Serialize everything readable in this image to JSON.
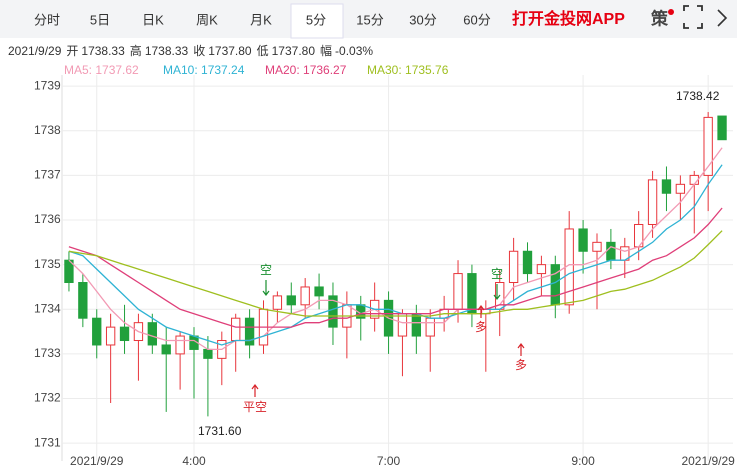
{
  "tabs": [
    "分时",
    "5日",
    "日K",
    "周K",
    "月K",
    "5分",
    "15分",
    "30分",
    "60分"
  ],
  "active_tab": 5,
  "promo": "打开金投网APP",
  "icon_label": "策",
  "ohlc": {
    "date": "2021/9/29",
    "items": [
      {
        "label": "开",
        "value": 1738.33
      },
      {
        "label": "高",
        "value": 1738.33
      },
      {
        "label": "收",
        "value": 1737.8,
        "value_label": "1737.80"
      },
      {
        "label": "低",
        "value": 1737.8,
        "value_label": "1737.80"
      },
      {
        "label": "幅",
        "value": "-0.03%"
      }
    ]
  },
  "chart_data": {
    "type": "candlestick",
    "categories": [
      null,
      null,
      "2021/9/29",
      null,
      null,
      null,
      null,
      null,
      null,
      "4:00",
      null,
      null,
      null,
      null,
      null,
      null,
      null,
      null,
      null,
      null,
      null,
      null,
      null,
      "7:00",
      null,
      null,
      null,
      null,
      null,
      null,
      null,
      null,
      null,
      null,
      null,
      null,
      null,
      "9:00",
      null,
      null,
      null,
      null,
      null,
      null,
      null,
      null,
      "2021/9/29",
      null
    ],
    "open": [
      1735.1,
      1734.6,
      1733.8,
      1733.2,
      1733.6,
      1733.3,
      1733.7,
      1733.2,
      1733.0,
      1733.4,
      1733.1,
      1732.9,
      1733.3,
      1733.8,
      1733.2,
      1734.0,
      1734.3,
      1734.1,
      1734.5,
      1734.3,
      1733.6,
      1734.1,
      1733.8,
      1734.2,
      1733.4,
      1733.9,
      1733.4,
      1733.8,
      1734.0,
      1734.8,
      1733.9,
      1734.0,
      1734.6,
      1735.3,
      1734.8,
      1735.0,
      1734.1,
      1735.8,
      1735.3,
      1735.5,
      1735.1,
      1735.4,
      1735.9,
      1736.9,
      1736.6,
      1736.8,
      1737.0,
      1738.33
    ],
    "high": [
      1735.3,
      1734.8,
      1734.0,
      1733.9,
      1734.1,
      1733.9,
      1733.9,
      1733.6,
      1733.5,
      1733.6,
      1733.4,
      1733.5,
      1733.9,
      1734.0,
      1734.2,
      1734.4,
      1734.6,
      1734.7,
      1734.8,
      1734.6,
      1734.4,
      1734.3,
      1734.6,
      1734.4,
      1734.0,
      1734.1,
      1734.0,
      1734.3,
      1735.1,
      1735.0,
      1734.2,
      1734.9,
      1735.6,
      1735.5,
      1735.2,
      1735.2,
      1736.2,
      1736.0,
      1735.7,
      1735.8,
      1735.6,
      1736.2,
      1737.1,
      1737.2,
      1737.0,
      1737.1,
      1738.42,
      1738.33
    ],
    "low": [
      1734.4,
      1733.6,
      1732.9,
      1731.9,
      1733.0,
      1732.4,
      1733.0,
      1731.7,
      1732.2,
      1732.0,
      1731.6,
      1732.3,
      1732.6,
      1732.9,
      1733.0,
      1733.7,
      1733.9,
      1733.8,
      1734.0,
      1733.2,
      1732.9,
      1733.3,
      1733.5,
      1733.0,
      1732.5,
      1733.0,
      1732.6,
      1733.5,
      1733.7,
      1733.6,
      1732.6,
      1733.4,
      1734.2,
      1734.6,
      1734.3,
      1733.8,
      1733.9,
      1734.8,
      1734.0,
      1734.9,
      1734.7,
      1735.1,
      1735.6,
      1736.2,
      1736.0,
      1735.7,
      1736.2,
      1737.8
    ],
    "close": [
      1734.6,
      1733.8,
      1733.2,
      1733.6,
      1733.3,
      1733.7,
      1733.2,
      1733.0,
      1733.4,
      1733.1,
      1732.9,
      1733.3,
      1733.8,
      1733.2,
      1734.0,
      1734.3,
      1734.1,
      1734.5,
      1734.3,
      1733.6,
      1734.1,
      1733.8,
      1734.2,
      1733.4,
      1733.9,
      1733.4,
      1733.8,
      1734.0,
      1734.8,
      1733.9,
      1734.0,
      1734.6,
      1735.3,
      1734.8,
      1735.0,
      1734.1,
      1735.8,
      1735.3,
      1735.5,
      1735.1,
      1735.4,
      1735.9,
      1736.9,
      1736.6,
      1736.8,
      1737.0,
      1738.3,
      1737.8
    ],
    "up_color": "#e8353b",
    "down_color": "#21a03c",
    "series": [
      {
        "name": "MA5: 1737.62",
        "color": "#f29ab4",
        "values": [
          1735.1,
          1734.8,
          1734.4,
          1734.0,
          1733.7,
          1733.5,
          1733.4,
          1733.3,
          1733.3,
          1733.3,
          1733.1,
          1733.1,
          1733.3,
          1733.3,
          1733.4,
          1733.7,
          1733.9,
          1734.0,
          1734.2,
          1734.2,
          1734.1,
          1733.9,
          1734.0,
          1733.8,
          1733.7,
          1733.7,
          1733.7,
          1733.7,
          1734.0,
          1734.0,
          1734.0,
          1734.1,
          1734.5,
          1734.6,
          1734.7,
          1734.8,
          1735.0,
          1735.0,
          1735.1,
          1735.4,
          1735.3,
          1735.4,
          1735.8,
          1736.1,
          1736.4,
          1736.8,
          1737.2,
          1737.62
        ]
      },
      {
        "name": "MA10: 1737.24",
        "color": "#2fb3d4",
        "values": [
          1735.3,
          1735.2,
          1734.9,
          1734.6,
          1734.3,
          1734.0,
          1733.8,
          1733.6,
          1733.5,
          1733.4,
          1733.3,
          1733.2,
          1733.3,
          1733.3,
          1733.4,
          1733.5,
          1733.6,
          1733.8,
          1733.9,
          1734.0,
          1734.1,
          1734.1,
          1734.0,
          1734.0,
          1733.9,
          1733.9,
          1733.8,
          1733.8,
          1733.9,
          1734.0,
          1734.0,
          1734.0,
          1734.2,
          1734.4,
          1734.5,
          1734.6,
          1734.8,
          1734.9,
          1735.0,
          1735.1,
          1735.1,
          1735.3,
          1735.5,
          1735.8,
          1736.0,
          1736.3,
          1736.8,
          1737.24
        ]
      },
      {
        "name": "MA20: 1736.27",
        "color": "#df3f79",
        "values": [
          1735.4,
          1735.3,
          1735.2,
          1735.0,
          1734.8,
          1734.6,
          1734.4,
          1734.2,
          1734.0,
          1733.9,
          1733.8,
          1733.7,
          1733.6,
          1733.6,
          1733.6,
          1733.6,
          1733.6,
          1733.7,
          1733.7,
          1733.8,
          1733.8,
          1733.9,
          1733.9,
          1733.9,
          1733.9,
          1733.9,
          1733.9,
          1734.0,
          1734.0,
          1734.0,
          1734.0,
          1734.1,
          1734.1,
          1734.2,
          1734.3,
          1734.3,
          1734.4,
          1734.5,
          1734.6,
          1734.7,
          1734.8,
          1734.9,
          1735.1,
          1735.2,
          1735.4,
          1735.6,
          1735.9,
          1736.27
        ]
      },
      {
        "name": "MA30: 1735.76",
        "color": "#9fbf1f",
        "values": [
          1735.3,
          1735.25,
          1735.2,
          1735.1,
          1735.0,
          1734.9,
          1734.8,
          1734.7,
          1734.6,
          1734.5,
          1734.4,
          1734.3,
          1734.2,
          1734.1,
          1734.0,
          1733.95,
          1733.9,
          1733.85,
          1733.85,
          1733.85,
          1733.85,
          1733.85,
          1733.85,
          1733.85,
          1733.85,
          1733.85,
          1733.85,
          1733.9,
          1733.9,
          1733.9,
          1733.9,
          1733.95,
          1734.0,
          1734.0,
          1734.05,
          1734.1,
          1734.15,
          1734.2,
          1734.3,
          1734.4,
          1734.45,
          1734.55,
          1734.65,
          1734.8,
          1734.95,
          1735.15,
          1735.45,
          1735.76
        ]
      }
    ],
    "ylim": [
      1730.6,
      1739.25
    ],
    "yticks": [
      1731,
      1732,
      1733,
      1734,
      1735,
      1736,
      1737,
      1738,
      1739
    ],
    "grid": true,
    "annotations": [
      "1731.60",
      "1738.42"
    ],
    "signals": [
      "空",
      "平空",
      "空",
      "多",
      "多"
    ]
  }
}
